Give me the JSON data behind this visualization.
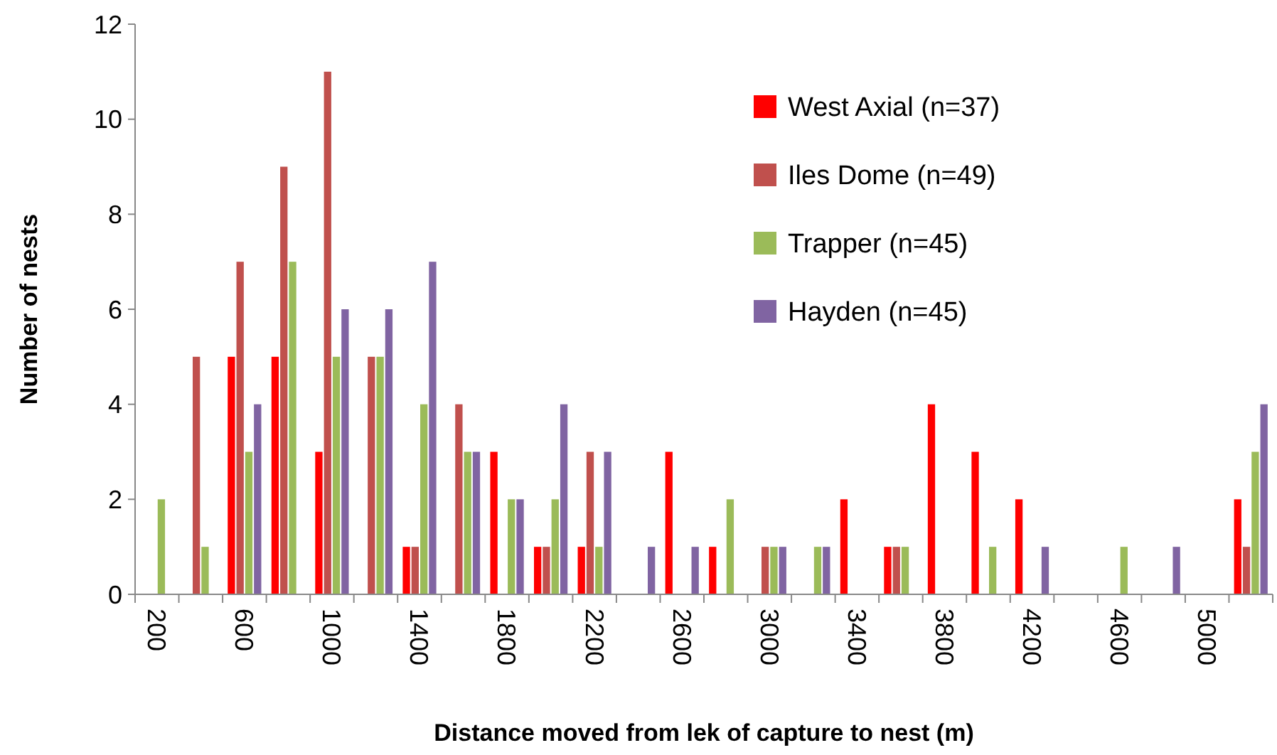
{
  "chart_data": {
    "type": "bar",
    "xlabel": "Distance moved from lek of capture to nest (m)",
    "ylabel": "Number of nests",
    "categories": [
      "200",
      null,
      "600",
      null,
      "1000",
      null,
      "1400",
      null,
      "1800",
      null,
      "2200",
      null,
      "2600",
      null,
      "3000",
      null,
      "3400",
      null,
      "3800",
      null,
      "4200",
      null,
      "4600",
      null,
      "5000",
      null
    ],
    "series": [
      {
        "name": "West Axial (n=37)",
        "color": "#ff0000",
        "values": [
          0,
          0,
          5,
          5,
          3,
          0,
          1,
          0,
          3,
          1,
          1,
          0,
          3,
          1,
          0,
          0,
          2,
          1,
          4,
          3,
          2,
          0,
          0,
          0,
          0,
          2
        ]
      },
      {
        "name": "Iles Dome (n=49)",
        "color": "#c0504d",
        "values": [
          0,
          5,
          7,
          9,
          11,
          5,
          1,
          4,
          0,
          1,
          3,
          0,
          0,
          0,
          1,
          0,
          0,
          1,
          0,
          0,
          0,
          0,
          0,
          0,
          0,
          1
        ]
      },
      {
        "name": "Trapper (n=45)",
        "color": "#9bbb59",
        "values": [
          2,
          1,
          3,
          7,
          5,
          5,
          4,
          3,
          2,
          2,
          1,
          0,
          0,
          2,
          1,
          1,
          0,
          1,
          0,
          1,
          0,
          0,
          1,
          0,
          0,
          3
        ]
      },
      {
        "name": "Hayden (n=45)",
        "color": "#8064a2",
        "values": [
          0,
          0,
          4,
          0,
          6,
          6,
          7,
          3,
          2,
          4,
          3,
          1,
          1,
          0,
          1,
          1,
          0,
          0,
          0,
          0,
          1,
          0,
          0,
          1,
          0,
          4
        ]
      }
    ],
    "ylim": [
      0,
      12
    ],
    "yticks": [
      0,
      2,
      4,
      6,
      8,
      10,
      12
    ],
    "grid": false,
    "legend": "top right"
  }
}
